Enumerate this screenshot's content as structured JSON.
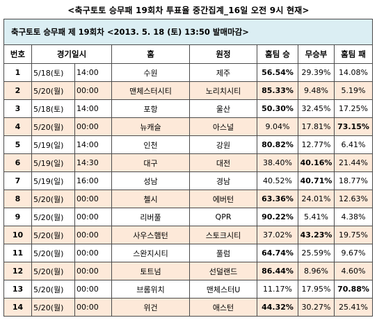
{
  "title": "<축구토토 승무패 19회차 투표율 중간집계_16일 오전 9시 현재>",
  "header": "축구토토 승무패 제 19회차 <2013. 5. 18 (토) 13:50 발매마감>",
  "columns": [
    "번호",
    "경기일시",
    "홈",
    "원정",
    "홈팀 승",
    "무승부",
    "홈팀 패"
  ],
  "rows": [
    {
      "no": "1",
      "date": "5/18(토)",
      "time": "14:00",
      "home": "수원",
      "away": "제주",
      "win": "56.54%",
      "draw": "29.39%",
      "loss": "14.08%",
      "bold": "win"
    },
    {
      "no": "2",
      "date": "5/20(월)",
      "time": "00:00",
      "home": "맨체스터시티",
      "away": "노리치시티",
      "win": "85.33%",
      "draw": "9.48%",
      "loss": "5.19%",
      "bold": "win"
    },
    {
      "no": "3",
      "date": "5/18(토)",
      "time": "14:00",
      "home": "포항",
      "away": "울산",
      "win": "50.30%",
      "draw": "32.45%",
      "loss": "17.25%",
      "bold": "win"
    },
    {
      "no": "4",
      "date": "5/20(월)",
      "time": "00:00",
      "home": "뉴캐슬",
      "away": "아스널",
      "win": "9.04%",
      "draw": "17.81%",
      "loss": "73.15%",
      "bold": "loss"
    },
    {
      "no": "5",
      "date": "5/19(일)",
      "time": "14:00",
      "home": "인천",
      "away": "강원",
      "win": "80.82%",
      "draw": "12.77%",
      "loss": "6.41%",
      "bold": "win"
    },
    {
      "no": "6",
      "date": "5/19(일)",
      "time": "14:30",
      "home": "대구",
      "away": "대전",
      "win": "38.40%",
      "draw": "40.16%",
      "loss": "21.44%",
      "bold": "draw"
    },
    {
      "no": "7",
      "date": "5/19(일)",
      "time": "16:00",
      "home": "성남",
      "away": "경남",
      "win": "40.52%",
      "draw": "40.71%",
      "loss": "18.77%",
      "bold": "draw"
    },
    {
      "no": "8",
      "date": "5/20(월)",
      "time": "00:00",
      "home": "첼시",
      "away": "에버턴",
      "win": "63.36%",
      "draw": "24.01%",
      "loss": "12.63%",
      "bold": "win"
    },
    {
      "no": "9",
      "date": "5/20(월)",
      "time": "00:00",
      "home": "리버풀",
      "away": "QPR",
      "win": "90.22%",
      "draw": "5.41%",
      "loss": "4.38%",
      "bold": "win"
    },
    {
      "no": "10",
      "date": "5/20(월)",
      "time": "00:00",
      "home": "사우스햄턴",
      "away": "스토크시티",
      "win": "37.02%",
      "draw": "43.23%",
      "loss": "19.75%",
      "bold": "draw"
    },
    {
      "no": "11",
      "date": "5/20(월)",
      "time": "00:00",
      "home": "스완지시티",
      "away": "풀럼",
      "win": "64.74%",
      "draw": "25.59%",
      "loss": "9.67%",
      "bold": "win"
    },
    {
      "no": "12",
      "date": "5/20(월)",
      "time": "00:00",
      "home": "토트넘",
      "away": "선덜랜드",
      "win": "86.44%",
      "draw": "8.96%",
      "loss": "4.60%",
      "bold": "win"
    },
    {
      "no": "13",
      "date": "5/20(월)",
      "time": "00:00",
      "home": "브롬위치",
      "away": "맨체스터U",
      "win": "11.17%",
      "draw": "17.95%",
      "loss": "70.88%",
      "bold": "loss"
    },
    {
      "no": "14",
      "date": "5/20(월)",
      "time": "00:00",
      "home": "위건",
      "away": "애스턴",
      "win": "44.32%",
      "draw": "30.27%",
      "loss": "25.41%",
      "bold": "win"
    }
  ]
}
